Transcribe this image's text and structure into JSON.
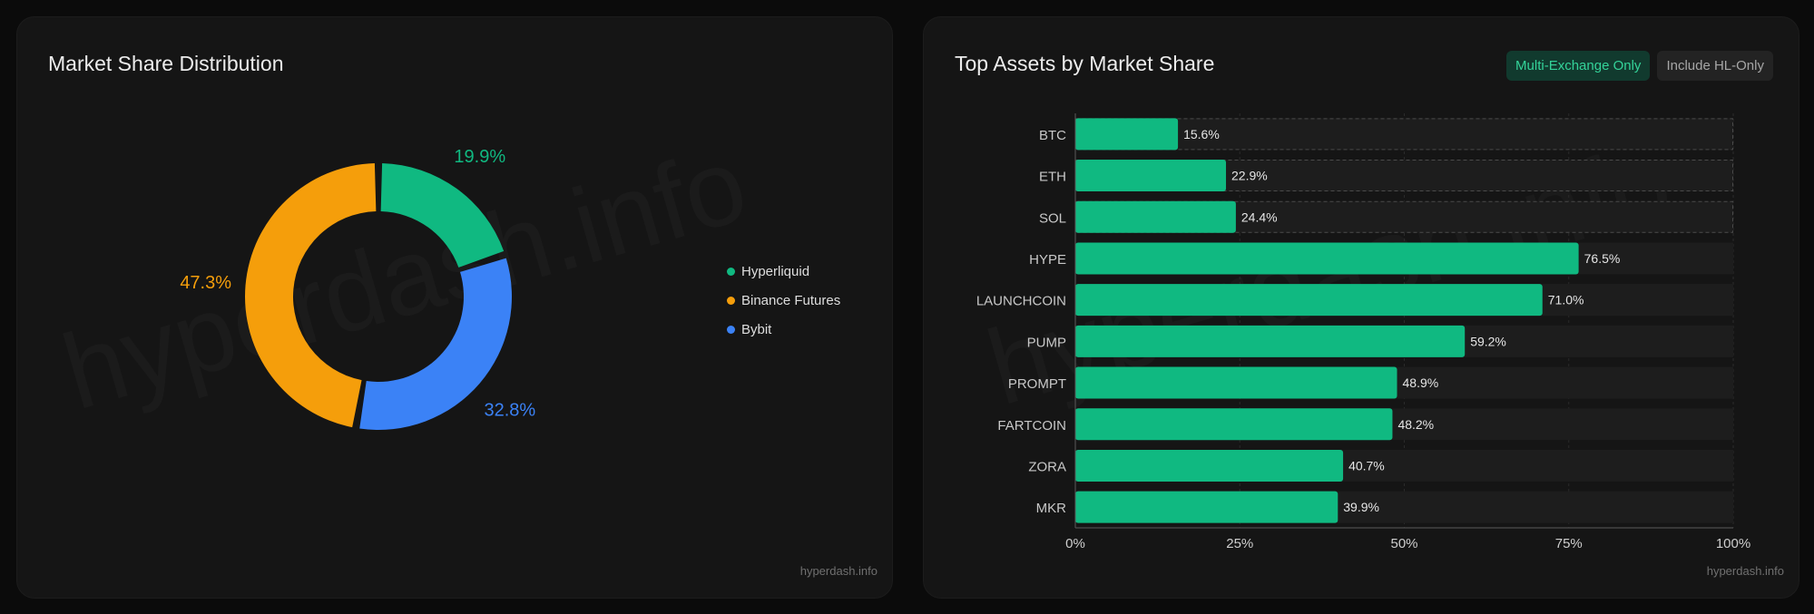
{
  "footer_text": "hyperdash.info",
  "watermark_text": "hyperdash.info",
  "left_card": {
    "title": "Market Share Distribution"
  },
  "right_card": {
    "title": "Top Assets by Market Share",
    "toggles": [
      {
        "label": "Multi-Exchange Only",
        "active": true
      },
      {
        "label": "Include HL-Only",
        "active": false
      }
    ]
  },
  "chart_data": [
    {
      "type": "pie",
      "title": "Market Share Distribution",
      "donut": true,
      "legend_position": "right",
      "slices": [
        {
          "name": "Hyperliquid",
          "value": 19.9,
          "label": "19.9%",
          "color": "#10b981"
        },
        {
          "name": "Bybit",
          "value": 32.8,
          "label": "32.8%",
          "color": "#3b82f6"
        },
        {
          "name": "Binance Futures",
          "value": 47.3,
          "label": "47.3%",
          "color": "#f59e0b"
        }
      ],
      "legend": [
        {
          "name": "Hyperliquid",
          "color": "#10b981"
        },
        {
          "name": "Binance Futures",
          "color": "#f59e0b"
        },
        {
          "name": "Bybit",
          "color": "#3b82f6"
        }
      ]
    },
    {
      "type": "bar",
      "orientation": "horizontal",
      "title": "Top Assets by Market Share",
      "categories": [
        "BTC",
        "ETH",
        "SOL",
        "HYPE",
        "LAUNCHCOIN",
        "PUMP",
        "PROMPT",
        "FARTCOIN",
        "ZORA",
        "MKR"
      ],
      "values": [
        15.6,
        22.9,
        24.4,
        76.5,
        71.0,
        59.2,
        48.9,
        48.2,
        40.7,
        39.9
      ],
      "value_labels": [
        "15.6%",
        "22.9%",
        "24.4%",
        "76.5%",
        "71.0%",
        "59.2%",
        "48.9%",
        "48.2%",
        "40.7%",
        "39.9%"
      ],
      "highlighted": [
        "BTC",
        "ETH",
        "SOL"
      ],
      "xlim": [
        0,
        100
      ],
      "xticks": [
        0,
        25,
        50,
        75,
        100
      ],
      "xtick_labels": [
        "0%",
        "25%",
        "50%",
        "75%",
        "100%"
      ],
      "grid": true,
      "bar_color": "#10b981"
    }
  ]
}
